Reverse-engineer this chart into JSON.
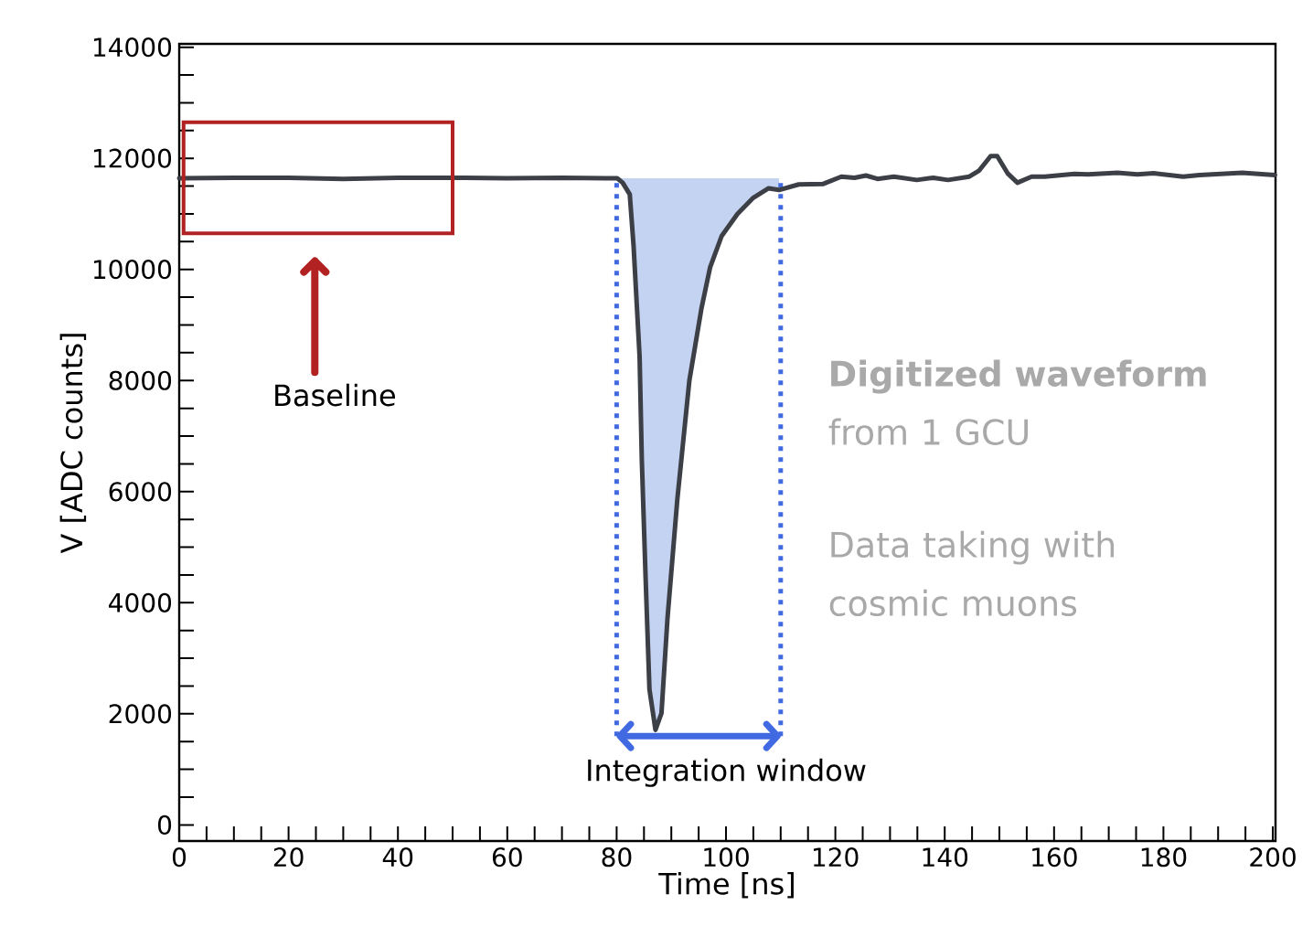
{
  "chart_data": {
    "type": "line",
    "xlabel": "Time [ns]",
    "ylabel": "V [ADC counts]",
    "xlim": [
      0,
      200.5
    ],
    "ylim": [
      -290,
      14060
    ],
    "xticks": [
      0,
      {
        "value": 5,
        "label": null
      },
      {
        "value": 10,
        "label": null
      },
      {
        "value": 15,
        "label": null
      },
      20,
      {
        "value": 25,
        "label": null
      },
      {
        "value": 30,
        "label": null
      },
      {
        "value": 35,
        "label": null
      },
      40,
      {
        "value": 45,
        "label": null
      },
      {
        "value": 50,
        "label": null
      },
      {
        "value": 55,
        "label": null
      },
      60,
      {
        "value": 65,
        "label": null
      },
      {
        "value": 70,
        "label": null
      },
      {
        "value": 75,
        "label": null
      },
      80,
      {
        "value": 85,
        "label": null
      },
      {
        "value": 90,
        "label": null
      },
      {
        "value": 95,
        "label": null
      },
      100,
      {
        "value": 105,
        "label": null
      },
      {
        "value": 110,
        "label": null
      },
      {
        "value": 115,
        "label": null
      },
      120,
      {
        "value": 125,
        "label": null
      },
      {
        "value": 130,
        "label": null
      },
      {
        "value": 135,
        "label": null
      },
      140,
      {
        "value": 145,
        "label": null
      },
      {
        "value": 150,
        "label": null
      },
      {
        "value": 155,
        "label": null
      },
      160,
      {
        "value": 165,
        "label": null
      },
      {
        "value": 170,
        "label": null
      },
      {
        "value": 175,
        "label": null
      },
      180,
      {
        "value": 185,
        "label": null
      },
      {
        "value": 190,
        "label": null
      },
      {
        "value": 195,
        "label": null
      },
      200
    ],
    "yticks": [
      0,
      {
        "value": 500,
        "label": null
      },
      {
        "value": 1000,
        "label": null
      },
      {
        "value": 1500,
        "label": null
      },
      2000,
      {
        "value": 2500,
        "label": null
      },
      {
        "value": 3000,
        "label": null
      },
      {
        "value": 3500,
        "label": null
      },
      4000,
      {
        "value": 4500,
        "label": null
      },
      {
        "value": 5000,
        "label": null
      },
      {
        "value": 5500,
        "label": null
      },
      6000,
      {
        "value": 6500,
        "label": null
      },
      {
        "value": 7000,
        "label": null
      },
      {
        "value": 7500,
        "label": null
      },
      8000,
      {
        "value": 8500,
        "label": null
      },
      {
        "value": 9000,
        "label": null
      },
      {
        "value": 9500,
        "label": null
      },
      10000,
      {
        "value": 10500,
        "label": null
      },
      {
        "value": 11000,
        "label": null
      },
      {
        "value": 11500,
        "label": null
      },
      12000,
      {
        "value": 12500,
        "label": null
      },
      {
        "value": 13000,
        "label": null
      },
      {
        "value": 13500,
        "label": null
      },
      14000
    ],
    "marker": "none",
    "line_style": "solid",
    "series": [
      {
        "color": "#3c3f45",
        "x": [
          0,
          10,
          20,
          30,
          40,
          50,
          60,
          70,
          78,
          80.1,
          81.1,
          82.4,
          83.1,
          84.2,
          84.6,
          85.3,
          86.0,
          87.1,
          88.2,
          89.3,
          91.1,
          93.3,
          95.5,
          97.1,
          99.2,
          102.1,
          105.0,
          107.8,
          109.7,
          113.3,
          117.8,
          121.1,
          123.5,
          125.6,
          127.7,
          130.7,
          134.9,
          137.9,
          140.6,
          144.5,
          146.3,
          148.4,
          149.6,
          151.5,
          153.3,
          155.9,
          158.3,
          163.7,
          166.2,
          171.6,
          175.2,
          178.2,
          183.6,
          186.6,
          194.4,
          200.4
        ],
        "values": [
          11640,
          11650,
          11650,
          11630,
          11650,
          11650,
          11640,
          11650,
          11640,
          11640,
          11560,
          11350,
          10420,
          8430,
          6580,
          4440,
          2440,
          1710,
          2010,
          3720,
          5860,
          8000,
          9290,
          10040,
          10600,
          11000,
          11290,
          11460,
          11430,
          11530,
          11540,
          11670,
          11650,
          11690,
          11630,
          11670,
          11610,
          11650,
          11610,
          11670,
          11780,
          12040,
          12040,
          11730,
          11560,
          11670,
          11670,
          11720,
          11710,
          11740,
          11710,
          11730,
          11670,
          11700,
          11740,
          11700
        ],
        "lower": [
          null,
          null,
          null,
          null,
          null,
          null,
          null,
          null,
          null,
          11640,
          11560,
          11350,
          10420,
          8430,
          6580,
          4440,
          2440,
          1710,
          2010,
          3720,
          5860,
          8000,
          9290,
          10040,
          10600,
          11000,
          11290,
          11460,
          11430,
          null,
          null,
          null,
          null,
          null,
          null,
          null,
          null,
          null,
          null,
          null,
          null,
          null,
          null,
          null,
          null,
          null,
          null,
          null,
          null,
          null,
          null,
          null,
          null,
          null,
          null,
          null
        ],
        "upper": [
          null,
          null,
          null,
          null,
          null,
          null,
          null,
          null,
          null,
          11640,
          11640,
          11640,
          11640,
          11640,
          11640,
          11640,
          11640,
          11640,
          11640,
          11640,
          11640,
          11640,
          11640,
          11640,
          11640,
          11640,
          11640,
          11640,
          11640,
          null,
          null,
          null,
          null,
          null,
          null,
          null,
          null,
          null,
          null,
          null,
          null,
          null,
          null,
          null,
          null,
          null,
          null,
          null,
          null,
          null,
          null,
          null,
          null,
          null,
          null,
          null
        ]
      }
    ],
    "ref_lines": [
      {
        "axis": "x",
        "value": 80,
        "color": "#4169e1",
        "line_style": "dotted"
      },
      {
        "axis": "x",
        "value": 110,
        "color": "#4169e1",
        "line_style": "dotted"
      }
    ],
    "annotations": [
      "Baseline",
      "Integration window",
      "**Digitized waveform** from 1 GCU",
      "Data taking with cosmic muons"
    ]
  }
}
